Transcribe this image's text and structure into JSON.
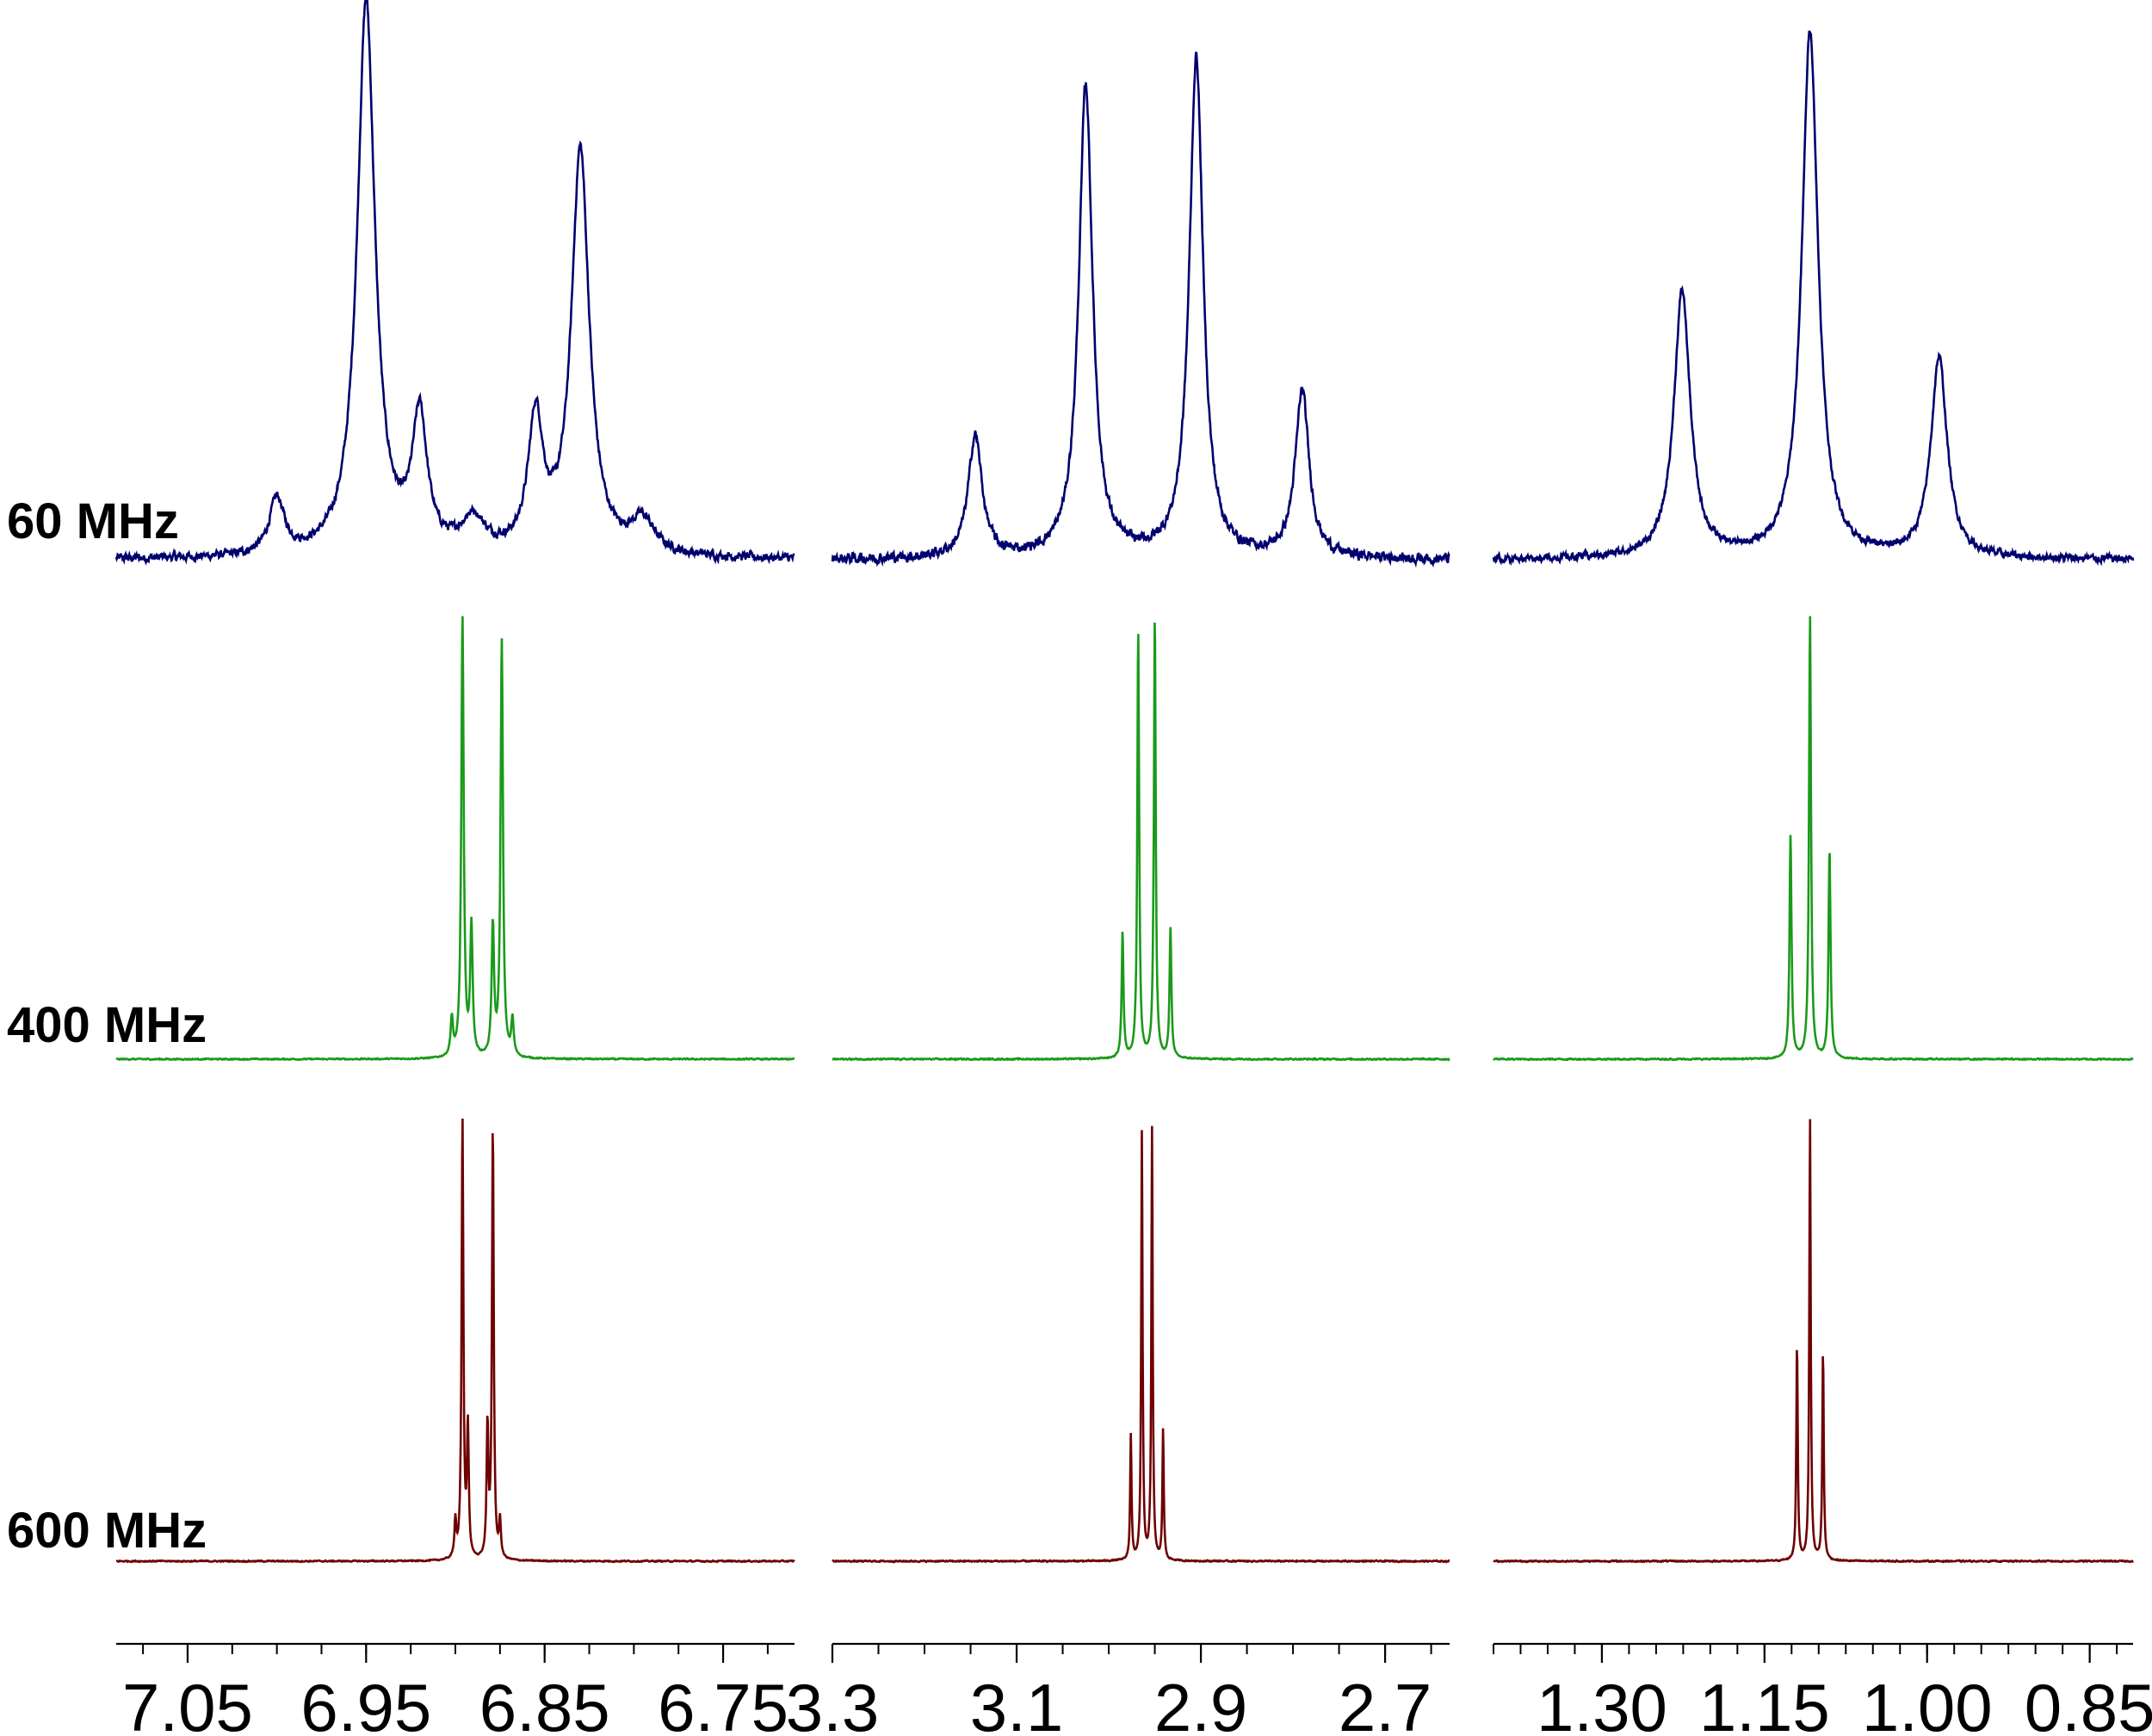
{
  "chart_data": {
    "type": "line",
    "x_axis_reversed": true,
    "field_labels": [
      "60 MHz",
      "400 MHz",
      "600 MHz"
    ],
    "colors": {
      "60 MHz": "#00006e",
      "400 MHz": "#1a9a1a",
      "600 MHz": "#6e0000"
    },
    "panels": [
      {
        "xlim": [
          7.09,
          6.71
        ],
        "ticks": [
          7.05,
          6.95,
          6.85,
          6.75
        ],
        "tick_labels": [
          "7.05",
          "6.95",
          "6.85",
          "6.75"
        ],
        "minor_step": 0.025,
        "spectra": [
          {
            "field": "60 MHz",
            "noise": 0.012,
            "baseline": [
              [
                7.09,
                0.0
              ],
              [
                6.71,
                0.0
              ]
            ],
            "peaks": [
              [
                7.0,
                0.1,
                0.005
              ],
              [
                6.95,
                1.0,
                0.006
              ],
              [
                6.92,
                0.24,
                0.005
              ],
              [
                6.89,
                0.06,
                0.008
              ],
              [
                6.855,
                0.24,
                0.005
              ],
              [
                6.83,
                0.73,
                0.006
              ],
              [
                6.795,
                0.06,
                0.008
              ]
            ]
          },
          {
            "field": "400 MHz",
            "noise": 0.002,
            "baseline": [
              [
                7.09,
                0.0
              ],
              [
                6.71,
                0.0
              ]
            ],
            "peaks": [
              [
                6.902,
                0.08,
                0.0008
              ],
              [
                6.896,
                0.95,
                0.0008
              ],
              [
                6.891,
                0.28,
                0.0008
              ],
              [
                6.879,
                0.28,
                0.0008
              ],
              [
                6.874,
                0.9,
                0.0008
              ],
              [
                6.868,
                0.08,
                0.0008
              ]
            ]
          },
          {
            "field": "600 MHz",
            "noise": 0.002,
            "baseline": [
              [
                7.09,
                0.0
              ],
              [
                6.71,
                0.0
              ]
            ],
            "peaks": [
              [
                6.9,
                0.08,
                0.0006
              ],
              [
                6.896,
                0.95,
                0.0006
              ],
              [
                6.893,
                0.28,
                0.0006
              ],
              [
                6.882,
                0.28,
                0.0006
              ],
              [
                6.879,
                0.93,
                0.0006
              ],
              [
                6.875,
                0.08,
                0.0006
              ]
            ]
          }
        ]
      },
      {
        "xlim": [
          3.3,
          2.63
        ],
        "ticks": [
          3.3,
          3.1,
          2.9,
          2.7
        ],
        "tick_labels": [
          "3.3",
          "3.1",
          "2.9",
          "2.7"
        ],
        "minor_step": 0.05,
        "spectra": [
          {
            "field": "60 MHz",
            "noise": 0.014,
            "baseline": [
              [
                3.3,
                0.0
              ],
              [
                2.63,
                0.0
              ]
            ],
            "peaks": [
              [
                3.145,
                0.22,
                0.009
              ],
              [
                3.025,
                0.85,
                0.009
              ],
              [
                2.905,
                0.9,
                0.009
              ],
              [
                2.79,
                0.3,
                0.009
              ]
            ]
          },
          {
            "field": "400 MHz",
            "noise": 0.002,
            "baseline": [
              [
                3.3,
                0.0
              ],
              [
                2.63,
                0.0
              ]
            ],
            "peaks": [
              [
                2.985,
                0.27,
                0.0012
              ],
              [
                2.968,
                0.92,
                0.0012
              ],
              [
                2.95,
                0.95,
                0.0012
              ],
              [
                2.933,
                0.28,
                0.0012
              ]
            ]
          },
          {
            "field": "600 MHz",
            "noise": 0.002,
            "baseline": [
              [
                3.3,
                0.0
              ],
              [
                2.63,
                0.0
              ]
            ],
            "peaks": [
              [
                2.976,
                0.27,
                0.0009
              ],
              [
                2.964,
                0.92,
                0.0009
              ],
              [
                2.953,
                0.93,
                0.0009
              ],
              [
                2.941,
                0.28,
                0.0009
              ]
            ]
          }
        ]
      },
      {
        "xlim": [
          1.4,
          0.81
        ],
        "ticks": [
          1.3,
          1.15,
          1.0,
          0.85
        ],
        "tick_labels": [
          "1.30",
          "1.15",
          "1.00",
          "0.85"
        ],
        "minor_step": 0.025,
        "spectra": [
          {
            "field": "60 MHz",
            "noise": 0.01,
            "baseline": [
              [
                1.4,
                0.0
              ],
              [
                0.81,
                0.0
              ]
            ],
            "peaks": [
              [
                1.226,
                0.48,
                0.009
              ],
              [
                1.108,
                0.95,
                0.009
              ],
              [
                0.989,
                0.36,
                0.009
              ]
            ]
          },
          {
            "field": "400 MHz",
            "noise": 0.002,
            "baseline": [
              [
                1.4,
                0.0
              ],
              [
                0.81,
                0.0
              ]
            ],
            "peaks": [
              [
                1.126,
                0.48,
                0.0011
              ],
              [
                1.108,
                0.95,
                0.0011
              ],
              [
                1.09,
                0.45,
                0.0011
              ]
            ]
          },
          {
            "field": "600 MHz",
            "noise": 0.002,
            "baseline": [
              [
                1.4,
                0.0
              ],
              [
                0.81,
                0.0
              ]
            ],
            "peaks": [
              [
                1.12,
                0.47,
                0.0008
              ],
              [
                1.108,
                0.95,
                0.0008
              ],
              [
                1.096,
                0.45,
                0.0008
              ]
            ]
          }
        ]
      }
    ]
  }
}
